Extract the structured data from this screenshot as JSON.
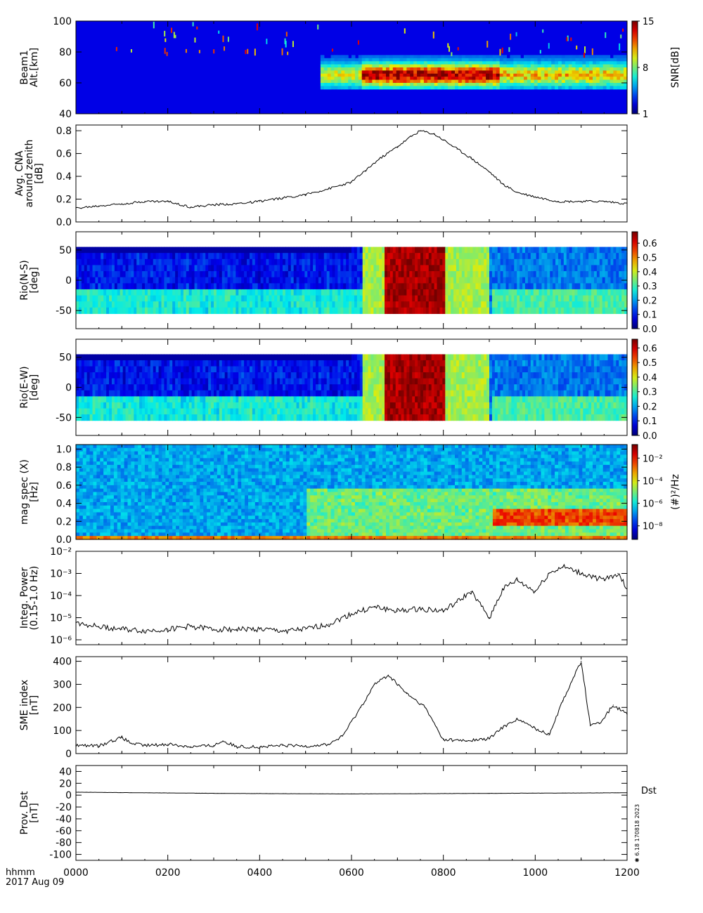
{
  "time_axis": {
    "ticks": [
      "0000",
      "0200",
      "0400",
      "0600",
      "0800",
      "1000",
      "1200"
    ],
    "label_line1": "hhmm",
    "label_line2": "2017 Aug 09"
  },
  "side_text": "Dst",
  "stamp_text": "✱ 6.18 170818 2023",
  "chart_data": [
    {
      "type": "heatmap",
      "ylabel": [
        "Beam1",
        "Alt.[km]"
      ],
      "yticks": [
        "40",
        "60",
        "80",
        "100"
      ],
      "ylim": [
        40,
        100
      ],
      "colorbar": {
        "label": "SNR[dB]",
        "ticks": [
          "1",
          "8",
          "15"
        ],
        "range": [
          1,
          15
        ]
      },
      "features": "Enhanced SNR layer 60-75 km from ~0600 to 1200, peak 0630-0900"
    },
    {
      "type": "line",
      "ylabel": [
        "Avg. CNA",
        "around zenith",
        "[dB]"
      ],
      "yticks": [
        "0.0",
        "0.2",
        "0.4",
        "0.6",
        "0.8"
      ],
      "ylim": [
        0,
        0.85
      ],
      "x_hours": [
        0,
        0.5,
        1,
        1.5,
        2,
        2.5,
        3,
        3.5,
        4,
        4.5,
        5,
        5.5,
        6,
        6.3,
        6.6,
        7,
        7.3,
        7.5,
        7.8,
        8,
        8.3,
        8.6,
        9,
        9.3,
        9.6,
        10,
        10.5,
        11,
        11.5,
        12
      ],
      "values": [
        0.12,
        0.14,
        0.16,
        0.18,
        0.18,
        0.13,
        0.15,
        0.16,
        0.18,
        0.21,
        0.24,
        0.29,
        0.35,
        0.45,
        0.55,
        0.66,
        0.75,
        0.8,
        0.77,
        0.72,
        0.64,
        0.56,
        0.44,
        0.33,
        0.26,
        0.22,
        0.18,
        0.18,
        0.18,
        0.16
      ]
    },
    {
      "type": "heatmap",
      "ylabel": [
        "Rio(N-S)",
        "[deg]"
      ],
      "yticks": [
        "-50",
        "0",
        "50"
      ],
      "ylim": [
        -80,
        80
      ],
      "colorbar": {
        "ticks": [
          "0.0",
          "0.1",
          "0.2",
          "0.3",
          "0.4",
          "0.5",
          "0.6"
        ],
        "range": [
          0,
          0.68
        ]
      },
      "features": "Absorption maximum 0630-0800 across all angles"
    },
    {
      "type": "heatmap",
      "ylabel": [
        "Rio(E-W)",
        "[deg]"
      ],
      "yticks": [
        "-50",
        "0",
        "50"
      ],
      "ylim": [
        -80,
        80
      ],
      "colorbar": {
        "ticks": [
          "0.0",
          "0.1",
          "0.2",
          "0.3",
          "0.4",
          "0.5",
          "0.6"
        ],
        "range": [
          0,
          0.66
        ]
      },
      "features": "Absorption maximum 0630-0800 across all angles"
    },
    {
      "type": "heatmap",
      "ylabel": [
        "mag spec (X)",
        "[Hz]"
      ],
      "yticks": [
        "0.0",
        "0.2",
        "0.4",
        "0.6",
        "0.8",
        "1.0"
      ],
      "ylim": [
        0,
        1.05
      ],
      "colorbar": {
        "label": "(#)²/Hz",
        "ticks": [
          "10⁻⁸",
          "10⁻⁶",
          "10⁻⁴",
          "10⁻²"
        ],
        "log": true
      },
      "features": "Broadband enhancement after 0530; bright band 0.2-0.3 Hz 0900-1200"
    },
    {
      "type": "line",
      "log_y": true,
      "ylabel": [
        "Integ. Power",
        "(0.15-1.0 Hz)"
      ],
      "yticks": [
        "10⁻⁶",
        "10⁻⁵",
        "10⁻⁴",
        "10⁻³",
        "10⁻²"
      ],
      "ylim": [
        6e-07,
        0.01
      ],
      "x_hours": [
        0,
        0.5,
        1,
        1.5,
        2,
        2.5,
        3,
        3.5,
        4,
        4.5,
        5,
        5.5,
        6,
        6.5,
        7,
        7.5,
        8,
        8.3,
        8.6,
        9,
        9.3,
        9.6,
        10,
        10.3,
        10.6,
        11,
        11.5,
        11.8,
        12
      ],
      "values": [
        6e-06,
        4e-06,
        3e-06,
        2.5e-06,
        3e-06,
        4e-06,
        3e-06,
        3e-06,
        3e-06,
        2.5e-06,
        3e-06,
        5e-06,
        1.5e-05,
        3e-05,
        2e-05,
        2.5e-05,
        2e-05,
        5e-05,
        0.00015,
        1e-05,
        0.0002,
        0.0005,
        0.00015,
        0.001,
        0.002,
        0.001,
        0.0005,
        0.001,
        0.0002
      ]
    },
    {
      "type": "line",
      "ylabel": [
        "SME index",
        "[nT]"
      ],
      "yticks": [
        "0",
        "100",
        "200",
        "300",
        "400"
      ],
      "ylim": [
        0,
        420
      ],
      "x_hours": [
        0,
        0.5,
        1.0,
        1.2,
        1.5,
        2,
        2.5,
        3,
        3.2,
        3.5,
        4,
        4.5,
        5,
        5.5,
        5.8,
        6.2,
        6.5,
        6.8,
        7.2,
        7.6,
        8,
        8.5,
        9.0,
        9.3,
        9.6,
        10.0,
        10.3,
        10.6,
        11.0,
        11.2,
        11.4,
        11.7,
        12
      ],
      "values": [
        35,
        33,
        70,
        45,
        35,
        40,
        30,
        35,
        55,
        30,
        28,
        35,
        33,
        40,
        75,
        200,
        300,
        340,
        260,
        200,
        60,
        55,
        65,
        115,
        150,
        110,
        80,
        230,
        400,
        120,
        130,
        210,
        170
      ]
    },
    {
      "type": "line",
      "ylabel": [
        "Prov. Dst",
        "[nT]"
      ],
      "yticks": [
        "-100",
        "-80",
        "-60",
        "-40",
        "-20",
        "0",
        "20",
        "40"
      ],
      "ylim": [
        -110,
        50
      ],
      "x_hours": [
        0,
        3,
        6,
        9,
        12
      ],
      "values": [
        5,
        3,
        2,
        3,
        4
      ]
    }
  ]
}
